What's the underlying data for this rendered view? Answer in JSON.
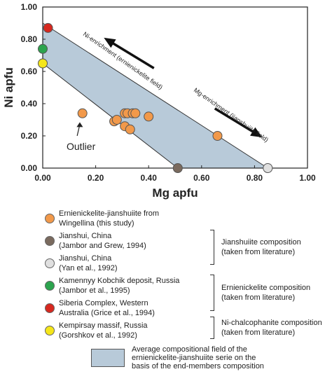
{
  "chart_data": {
    "type": "scatter",
    "xlabel": "Mg apfu",
    "ylabel": "Ni apfu",
    "xlim": [
      0,
      1
    ],
    "ylim": [
      0,
      1
    ],
    "x_ticks": [
      "0.00",
      "0.20",
      "0.40",
      "0.60",
      "0.80",
      "1.00"
    ],
    "y_ticks": [
      "0.00",
      "0.20",
      "0.40",
      "0.60",
      "0.80",
      "1.00"
    ],
    "grid": false,
    "field_polygon": [
      [
        0,
        0.9
      ],
      [
        0.85,
        0
      ],
      [
        0.51,
        0
      ],
      [
        0,
        0.65
      ]
    ],
    "series": [
      {
        "name": "Ernienickelite-jianshuiite from Wingellina (this study)",
        "color": "#f2994a",
        "x": [
          0.15,
          0.27,
          0.28,
          0.31,
          0.31,
          0.33,
          0.32,
          0.34,
          0.35,
          0.4,
          0.66
        ],
        "y": [
          0.34,
          0.29,
          0.3,
          0.34,
          0.26,
          0.24,
          0.34,
          0.34,
          0.34,
          0.32,
          0.2
        ]
      },
      {
        "name": "Jianshui, China (Jambor and Grew, 1994)",
        "color": "#7a6a5e",
        "x": [
          0.51
        ],
        "y": [
          0.0
        ]
      },
      {
        "name": "Jianshui, China (Yan et al., 1992)",
        "color": "#e0e0e0",
        "x": [
          0.85
        ],
        "y": [
          0.0
        ]
      },
      {
        "name": "Kamennyy Kobchik deposit, Russia (Jambor et al., 1995)",
        "color": "#2ca44e",
        "x": [
          0.0
        ],
        "y": [
          0.74
        ]
      },
      {
        "name": "Siberia Complex, Western Australia (Grice et al., 1994)",
        "color": "#d7281f",
        "x": [
          0.02
        ],
        "y": [
          0.87
        ]
      },
      {
        "name": "Kempirsay massif, Russia (Gorshkov et al., 1992)",
        "color": "#f5e61a",
        "x": [
          0.0
        ],
        "y": [
          0.65
        ]
      }
    ],
    "annotations": {
      "ni_enrichment": "Ni-enrichment (ernienickelite field)",
      "mg_enrichment": "Mg-enrichment (jianshuiite field)",
      "outlier": "Outlier"
    }
  },
  "legend": {
    "items": [
      {
        "color": "#f2994a",
        "lines": [
          "Ernienickelite-jianshuiite from",
          "Wingellina (this study)"
        ]
      },
      {
        "color": "#7a6a5e",
        "lines": [
          "Jianshui, China",
          "(Jambor and Grew, 1994)"
        ]
      },
      {
        "color": "#e0e0e0",
        "lines": [
          "Jianshui, China",
          "(Yan et al., 1992)"
        ]
      },
      {
        "color": "#2ca44e",
        "lines": [
          "Kamennyy Kobchik deposit, Russia",
          "(Jambor et al., 1995)"
        ]
      },
      {
        "color": "#d7281f",
        "lines": [
          "Siberia Complex, Western",
          "Australia (Grice et al., 1994)"
        ]
      },
      {
        "color": "#f5e61a",
        "lines": [
          "Kempirsay massif, Russia",
          "(Gorshkov et al., 1992)"
        ]
      }
    ],
    "groups": [
      {
        "lines": [
          "Jianshuiite composition",
          "(taken from literature)"
        ]
      },
      {
        "lines": [
          "Ernienickelite composition",
          "(taken from literature)"
        ]
      },
      {
        "lines": [
          "Ni-chalcophanite composition",
          "(taken from literature)"
        ]
      }
    ],
    "field": {
      "color": "#b8cad9",
      "lines": [
        "Average compositional field of the",
        "ernienickelite-jianshuiite serie on the",
        "basis of the end-members composition"
      ]
    }
  }
}
